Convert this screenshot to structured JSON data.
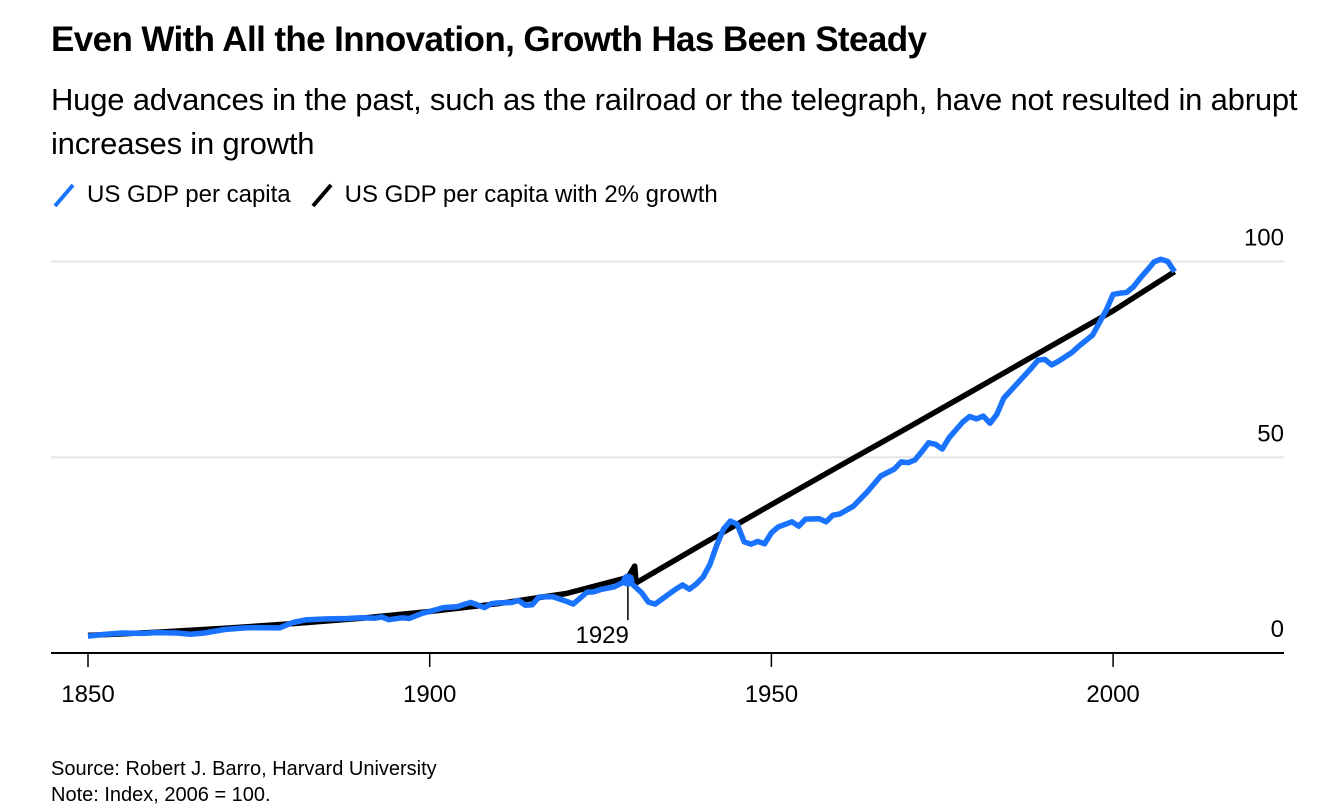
{
  "header": {
    "title": "Even With All the Innovation, Growth Has Been Steady",
    "subtitle": "Huge advances in the past, such as the railroad or the telegraph, have not resulted in abrupt increases in growth"
  },
  "legend": {
    "items": [
      {
        "label": "US GDP per capita",
        "color": "#1a73ff",
        "icon": "diagonal-line-icon"
      },
      {
        "label": "US GDP per capita with 2% growth",
        "color": "#000000",
        "icon": "diagonal-line-icon"
      }
    ]
  },
  "footer": {
    "source": "Source: Robert J. Barro, Harvard University",
    "note": "Note: Index, 2006 = 100."
  },
  "chart_data": {
    "type": "line",
    "title": "Even With All the Innovation, Growth Has Been Steady",
    "xlabel": "",
    "ylabel": "",
    "xlim": [
      1845,
      2020
    ],
    "ylim": [
      0,
      100
    ],
    "x_ticks": [
      1850,
      1900,
      1950,
      2000
    ],
    "x_tick_labels": [
      "1850",
      "1900",
      "1950",
      "2000"
    ],
    "y_ticks": [
      0,
      50,
      100
    ],
    "y_tick_labels": [
      "0",
      "50",
      "100"
    ],
    "y_axis_position": "right",
    "grid": "horizontal",
    "legend_position": "top-left",
    "series": [
      {
        "name": "US GDP per capita",
        "color": "#1a73ff",
        "x": [
          1850,
          1852,
          1855,
          1858,
          1860,
          1863,
          1865,
          1867,
          1870,
          1873,
          1875,
          1878,
          1880,
          1882,
          1885,
          1888,
          1890,
          1892,
          1893,
          1894,
          1896,
          1897,
          1899,
          1900,
          1902,
          1904,
          1905,
          1906,
          1908,
          1909,
          1910,
          1912,
          1913,
          1914,
          1915,
          1916,
          1918,
          1919,
          1920,
          1921,
          1923,
          1924,
          1925,
          1927,
          1929,
          1930,
          1931,
          1932,
          1933,
          1934,
          1936,
          1937,
          1938,
          1939,
          1940,
          1941,
          1942,
          1943,
          1944,
          1945,
          1946,
          1947,
          1948,
          1949,
          1950,
          1951,
          1953,
          1954,
          1955,
          1957,
          1958,
          1959,
          1960,
          1962,
          1964,
          1966,
          1968,
          1969,
          1970,
          1971,
          1972,
          1973,
          1974,
          1975,
          1976,
          1978,
          1979,
          1980,
          1981,
          1982,
          1983,
          1984,
          1986,
          1988,
          1989,
          1990,
          1991,
          1992,
          1994,
          1995,
          1997,
          1999,
          2000,
          2001,
          2002,
          2003,
          2004,
          2005,
          2006,
          2007,
          2008,
          2009
        ],
        "values": [
          4.3,
          4.7,
          5.1,
          5.0,
          5.2,
          5.1,
          4.8,
          5.1,
          6.0,
          6.4,
          6.5,
          6.4,
          7.8,
          8.5,
          8.7,
          8.8,
          9.0,
          8.9,
          9.2,
          8.5,
          9.0,
          8.8,
          10.2,
          10.6,
          11.6,
          11.8,
          12.4,
          12.9,
          11.6,
          12.6,
          12.8,
          12.9,
          13.4,
          12.2,
          12.3,
          14.3,
          14.4,
          13.8,
          13.2,
          12.5,
          15.5,
          15.6,
          16.2,
          16.9,
          18.6,
          17.0,
          15.4,
          13.0,
          12.5,
          13.8,
          16.3,
          17.4,
          16.3,
          17.6,
          19.4,
          22.6,
          27.5,
          31.7,
          33.7,
          32.9,
          28.4,
          27.8,
          28.5,
          27.9,
          30.7,
          32.2,
          33.5,
          32.4,
          34.2,
          34.3,
          33.5,
          35.2,
          35.5,
          37.5,
          41.1,
          45.2,
          47.0,
          48.8,
          48.6,
          49.3,
          51.4,
          53.7,
          53.3,
          52.1,
          55.0,
          59.0,
          60.4,
          59.8,
          60.5,
          58.7,
          61.0,
          65.1,
          68.9,
          72.7,
          74.8,
          75.0,
          73.6,
          74.5,
          76.8,
          78.4,
          81.2,
          87.6,
          91.6,
          91.9,
          92.1,
          93.6,
          95.8,
          97.8,
          99.9,
          100.6,
          100.0,
          97.4
        ]
      },
      {
        "name": "US GDP per capita with 2% growth",
        "color": "#000000",
        "x": [
          1850,
          1860,
          1870,
          1880,
          1890,
          1900,
          1910,
          1920,
          1929,
          1930,
          1930.2,
          1940,
          1950,
          1960,
          1970,
          1980,
          1990,
          2000,
          2009
        ],
        "values": [
          4.5,
          5.3,
          6.3,
          7.5,
          8.9,
          10.6,
          12.6,
          15.2,
          19.3,
          22.2,
          17.9,
          27.9,
          37.9,
          47.8,
          57.6,
          67.5,
          77.5,
          87.4,
          97.4
        ]
      }
    ],
    "annotations": [
      {
        "label": "1929",
        "x": 1929,
        "y": 18.6,
        "series": "US GDP per capita",
        "marker": "dot"
      }
    ]
  }
}
